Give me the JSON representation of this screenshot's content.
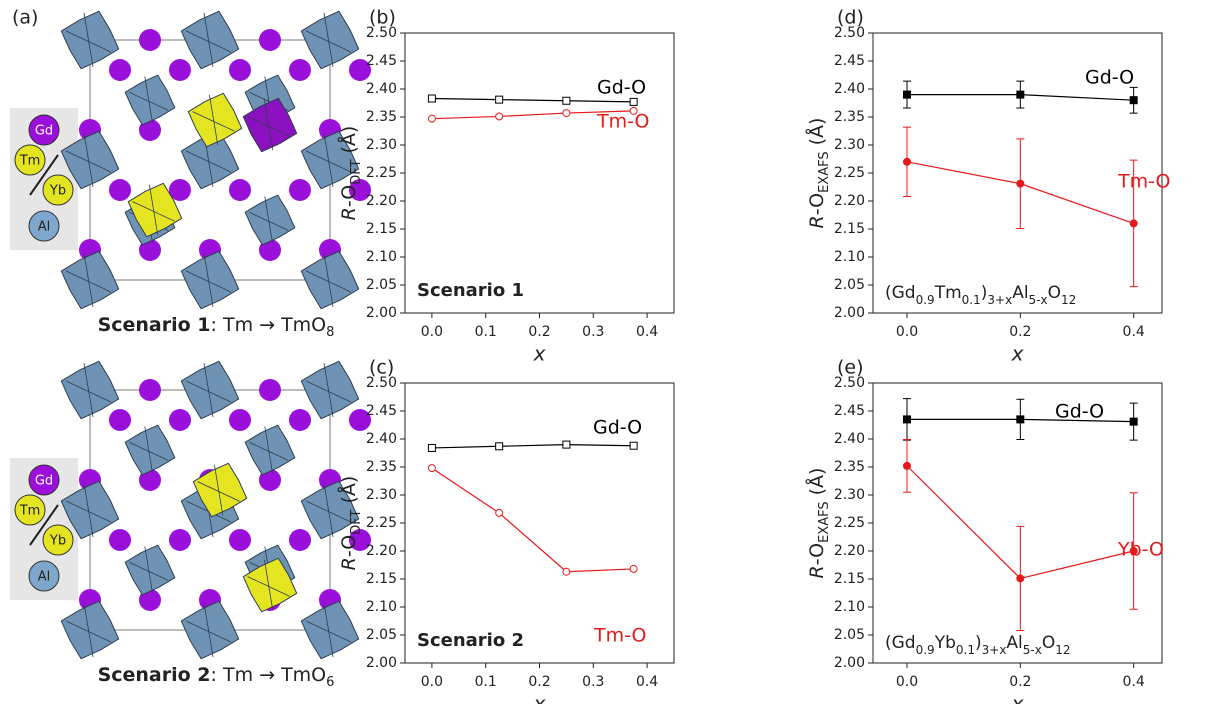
{
  "panel_a": {
    "label": "(a)",
    "legend": [
      "Gd",
      "Tm",
      "Yb",
      "Al"
    ],
    "captions": [
      {
        "bold": "Scenario 1",
        "text": ": Tm → TmO",
        "sub": "8"
      },
      {
        "bold": "Scenario 2",
        "text": ": Tm → TmO",
        "sub": "6"
      }
    ]
  },
  "chart_data": [
    {
      "type": "line",
      "panel_label": "(b)",
      "annotation": "Scenario 1",
      "xlabel": "x",
      "ylabel": {
        "italic": "R",
        "main": "-O",
        "sub": "DFT",
        "tail": " (Å)"
      },
      "x": [
        0,
        0.125,
        0.25,
        0.375
      ],
      "xlim": [
        -0.05,
        0.45
      ],
      "xticks": [
        {
          "value": 0,
          "label": "0.0"
        },
        0.1,
        0.2,
        0.3,
        0.4
      ],
      "ylim": [
        2.0,
        2.5
      ],
      "yticks": [
        {
          "value": 2.0,
          "label": "2.00"
        },
        2.05,
        {
          "value": 2.1,
          "label": "2.10"
        },
        2.15,
        {
          "value": 2.2,
          "label": "2.20"
        },
        2.25,
        {
          "value": 2.3,
          "label": "2.30"
        },
        2.35,
        {
          "value": 2.4,
          "label": "2.40"
        },
        2.45,
        {
          "value": 2.5,
          "label": "2.50"
        }
      ],
      "series": [
        {
          "name": "Gd-O",
          "color": "#000000",
          "marker": "square",
          "filled": false,
          "values": [
            2.383,
            2.381,
            2.379,
            2.377
          ]
        },
        {
          "name": "Tm-O",
          "color": "#e8191b",
          "marker": "circle",
          "filled": false,
          "values": [
            2.347,
            2.351,
            2.357,
            2.361
          ]
        }
      ]
    },
    {
      "type": "line",
      "panel_label": "(c)",
      "annotation": "Scenario 2",
      "xlabel": "x",
      "ylabel": {
        "italic": "R",
        "main": "-O",
        "sub": "DFT",
        "tail": " (Å)"
      },
      "x": [
        0,
        0.125,
        0.25,
        0.375
      ],
      "xlim": [
        -0.05,
        0.45
      ],
      "xticks": [
        {
          "value": 0,
          "label": "0.0"
        },
        0.1,
        0.2,
        0.3,
        0.4
      ],
      "ylim": [
        2.0,
        2.5
      ],
      "yticks": [
        {
          "value": 2.0,
          "label": "2.00"
        },
        2.05,
        {
          "value": 2.1,
          "label": "2.10"
        },
        2.15,
        {
          "value": 2.2,
          "label": "2.20"
        },
        2.25,
        {
          "value": 2.3,
          "label": "2.30"
        },
        2.35,
        {
          "value": 2.4,
          "label": "2.40"
        },
        2.45,
        {
          "value": 2.5,
          "label": "2.50"
        }
      ],
      "series": [
        {
          "name": "Gd-O",
          "color": "#000000",
          "marker": "square",
          "filled": false,
          "values": [
            2.384,
            2.387,
            2.39,
            2.388
          ]
        },
        {
          "name": "Tm-O",
          "color": "#e8191b",
          "marker": "circle",
          "filled": false,
          "values": [
            2.348,
            2.268,
            2.163,
            2.168
          ]
        }
      ]
    },
    {
      "type": "line",
      "panel_label": "(d)",
      "formula": [
        "(Gd",
        "0.9",
        "Tm",
        "0.1",
        ")",
        "3+x",
        "Al",
        "5-x",
        "O",
        "12"
      ],
      "xlabel": "x",
      "ylabel": {
        "italic": "R",
        "main": "-O",
        "sub": "EXAFS",
        "tail": " (Å)"
      },
      "x": [
        0,
        0.2,
        0.4
      ],
      "xlim": [
        -0.06,
        0.45
      ],
      "xticks": [
        {
          "value": 0,
          "label": "0.0"
        },
        0.2,
        0.4
      ],
      "ylim": [
        2.0,
        2.5
      ],
      "yticks": [
        {
          "value": 2.0,
          "label": "2.00"
        },
        2.05,
        {
          "value": 2.1,
          "label": "2.10"
        },
        2.15,
        {
          "value": 2.2,
          "label": "2.20"
        },
        2.25,
        {
          "value": 2.3,
          "label": "2.30"
        },
        2.35,
        {
          "value": 2.4,
          "label": "2.40"
        },
        2.45,
        {
          "value": 2.5,
          "label": "2.50"
        }
      ],
      "series": [
        {
          "name": "Gd-O",
          "color": "#000000",
          "marker": "square",
          "filled": true,
          "values": [
            2.39,
            2.39,
            2.38
          ],
          "errors": [
            0.024,
            0.024,
            0.023
          ]
        },
        {
          "name": "Tm-O",
          "color": "#e8191b",
          "marker": "circle",
          "filled": true,
          "values": [
            2.27,
            2.231,
            2.16
          ],
          "errors": [
            0.062,
            0.08,
            0.113
          ]
        }
      ]
    },
    {
      "type": "line",
      "panel_label": "(e)",
      "formula": [
        "(Gd",
        "0.9",
        "Yb",
        "0.1",
        ")",
        "3+x",
        "Al",
        "5-x",
        "O",
        "12"
      ],
      "xlabel": "x",
      "ylabel": {
        "italic": "R",
        "main": "-O",
        "sub": "EXAFS",
        "tail": " (Å)"
      },
      "x": [
        0,
        0.2,
        0.4
      ],
      "xlim": [
        -0.06,
        0.45
      ],
      "xticks": [
        {
          "value": 0,
          "label": "0.0"
        },
        0.2,
        0.4
      ],
      "ylim": [
        2.0,
        2.5
      ],
      "yticks": [
        {
          "value": 2.0,
          "label": "2.00"
        },
        2.05,
        {
          "value": 2.1,
          "label": "2.10"
        },
        2.15,
        {
          "value": 2.2,
          "label": "2.20"
        },
        2.25,
        {
          "value": 2.3,
          "label": "2.30"
        },
        2.35,
        {
          "value": 2.4,
          "label": "2.40"
        },
        2.45,
        {
          "value": 2.5,
          "label": "2.50"
        }
      ],
      "series": [
        {
          "name": "Gd-O",
          "color": "#000000",
          "marker": "square",
          "filled": true,
          "values": [
            2.435,
            2.435,
            2.431
          ],
          "errors": [
            0.037,
            0.036,
            0.033
          ]
        },
        {
          "name": "Yb-O",
          "color": "#e8191b",
          "marker": "circle",
          "filled": true,
          "values": [
            2.352,
            2.151,
            2.2
          ],
          "errors": [
            0.047,
            0.093,
            0.104
          ]
        }
      ]
    }
  ]
}
